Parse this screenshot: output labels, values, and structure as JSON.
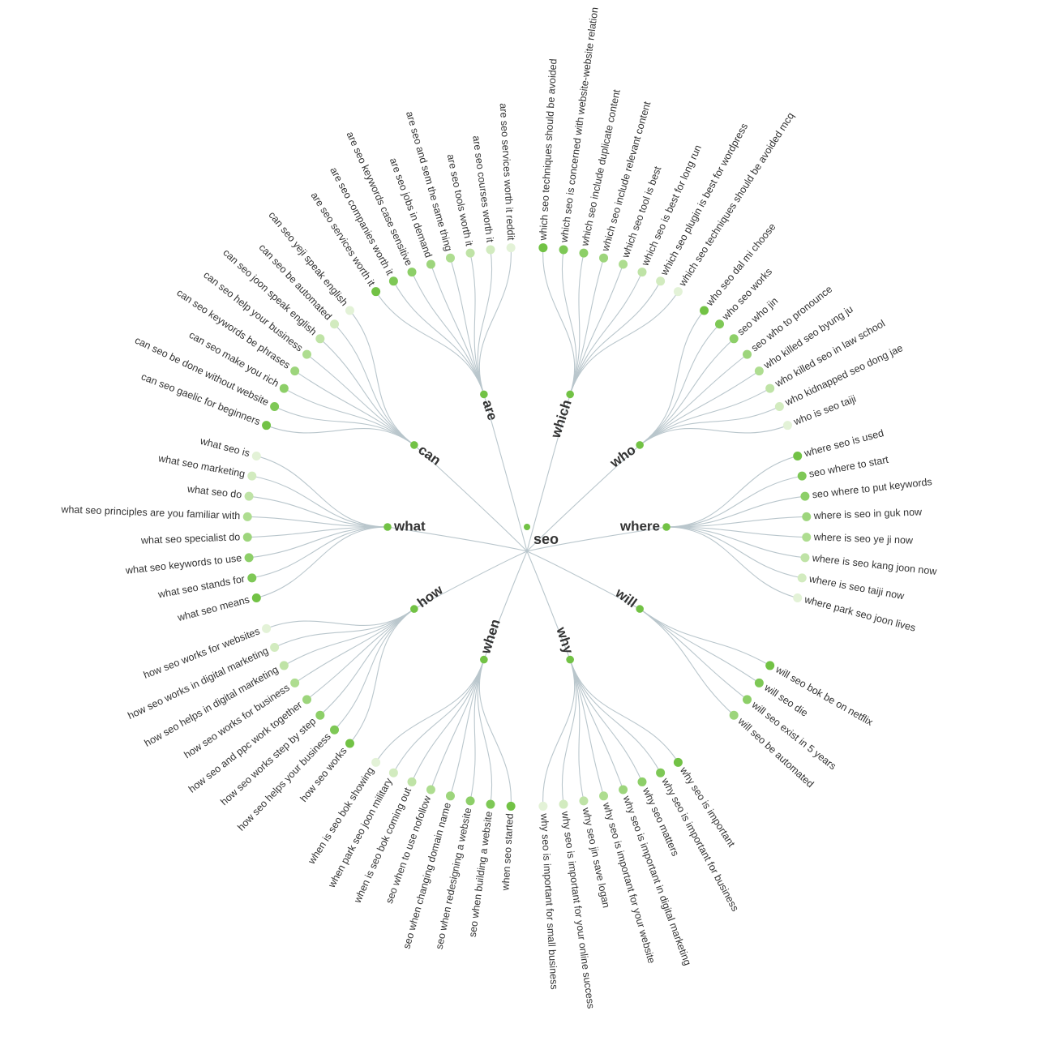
{
  "root": {
    "label": "seo"
  },
  "leaf_colors": [
    "#72c245",
    "#7ec856",
    "#8dcf68",
    "#9dd57c",
    "#aedd90",
    "#bfe3a6",
    "#d2ebbf",
    "#e3f2d7"
  ],
  "branches": [
    {
      "label": "where",
      "leaves": [
        "where seo is used",
        "seo where to start",
        "seo where to put keywords",
        "where is seo in guk now",
        "where is seo ye ji now",
        "where is seo kang joon now",
        "where is seo taiji now",
        "where park seo joon lives"
      ]
    },
    {
      "label": "will",
      "leaves": [
        "will seo bok be on netflix",
        "will seo die",
        "will seo exist in 5 years",
        "will seo be automated"
      ]
    },
    {
      "label": "why",
      "leaves": [
        "why seo is important",
        "why seo is important for business",
        "why seo matters",
        "why seo is important in digital marketing",
        "why seo is important for your website",
        "why seo jin save logan",
        "why seo is important for your online success",
        "why seo is important for small business"
      ]
    },
    {
      "label": "when",
      "leaves": [
        "when seo started",
        "seo when building a website",
        "seo when redesigning a website",
        "seo when changing domain name",
        "seo when to use nofollow",
        "when is seo bok coming out",
        "when park seo joon military",
        "when is seo bok showing"
      ]
    },
    {
      "label": "how",
      "leaves": [
        "how seo works",
        "how seo helps your business",
        "how seo works step by step",
        "how seo and ppc work together",
        "how seo works for business",
        "how seo helps in digital marketing",
        "how seo works in digital marketing",
        "how seo works for websites"
      ]
    },
    {
      "label": "what",
      "leaves": [
        "what seo means",
        "what seo stands for",
        "what seo keywords to use",
        "what seo specialist do",
        "what seo principles are you familiar with",
        "what seo do",
        "what seo marketing",
        "what seo is"
      ]
    },
    {
      "label": "can",
      "leaves": [
        "can seo gaelic for beginners",
        "can seo be done without website",
        "can seo make you rich",
        "can seo keywords be phrases",
        "can seo help your business",
        "can seo joon speak english",
        "can seo be automated",
        "can seo yeji speak english"
      ]
    },
    {
      "label": "are",
      "leaves": [
        "are seo services worth it",
        "are seo companies worth it",
        "are seo keywords case sensitive",
        "are seo jobs in demand",
        "are seo and sem the same thing",
        "are seo tools worth it",
        "are seo courses worth it",
        "are seo services worth it reddit"
      ]
    },
    {
      "label": "which",
      "leaves": [
        "which seo techniques should be avoided",
        "which seo is concerned with website-website relation",
        "which seo include duplicate content",
        "which seo include relevant content",
        "which seo tool is best",
        "which seo is best for long run",
        "which seo plugin is best for wordpress",
        "which seo techniques should be avoided mcq"
      ]
    },
    {
      "label": "who",
      "leaves": [
        "who seo dal mi choose",
        "who seo works",
        "seo who jin",
        "seo who to pronounce",
        "who killed seo byung ju",
        "who killed seo in law school",
        "who kidnapped seo dong jae",
        "who is seo taiji"
      ]
    }
  ]
}
